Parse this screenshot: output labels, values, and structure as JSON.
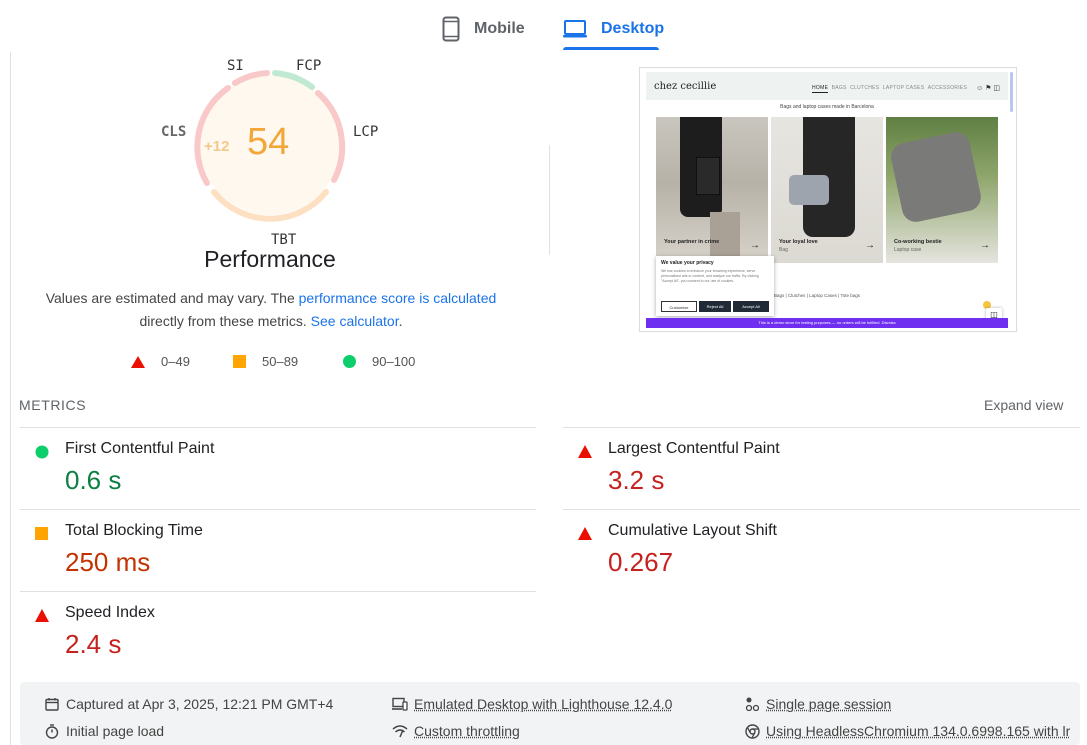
{
  "tabs": [
    {
      "label": "Mobile",
      "active": false
    },
    {
      "label": "Desktop",
      "active": true
    }
  ],
  "gauge": {
    "score": "54",
    "delta": "+12",
    "labels": {
      "si": "SI",
      "fcp": "FCP",
      "lcp": "LCP",
      "tbt": "TBT",
      "cls": "CLS"
    },
    "title": "Performance"
  },
  "description": {
    "text1": "Values are estimated and may vary. The ",
    "link1": "performance score is calculated",
    "text2": " directly from these metrics. ",
    "link2": "See calculator",
    "text3": "."
  },
  "legend": [
    {
      "shape": "triangle",
      "range": "0–49",
      "color": "#ff4e42"
    },
    {
      "shape": "square",
      "range": "50–89",
      "color": "#ffa400"
    },
    {
      "shape": "circle",
      "range": "90–100",
      "color": "#0cce6b"
    }
  ],
  "thumbnail": {
    "logo": "chez cecillie",
    "nav": [
      "HOME",
      "BAGS",
      "CLUTCHES",
      "LAPTOP CASES",
      "ACCESSORIES"
    ],
    "tagline": "Bags and laptop cases made in Barcelona",
    "panels": [
      {
        "title": "Your partner in crime",
        "sub": ""
      },
      {
        "title": "Your loyal love",
        "sub": "Bag"
      },
      {
        "title": "Co-working bestie",
        "sub": "Laptop case"
      }
    ],
    "privacy_title": "We value your privacy",
    "privacy_text": "We use cookies to enhance your browsing experience, serve personalised ads or content, and analyse our traffic. By clicking \"Accept All\", you consent to our use of cookies.",
    "privacy_buttons": [
      "Customise",
      "Reject All",
      "Accept All"
    ],
    "category_links": "Bags  |  Clutches  |  Laptop Cases  |  Tote bags",
    "demo_bar": "This is a demo store for testing purposes — no orders will be fulfilled. Dismiss"
  },
  "metrics": {
    "heading": "METRICS",
    "expand_label": "Expand view",
    "items": [
      {
        "name": "First Contentful Paint",
        "value": "0.6 s",
        "status": "good"
      },
      {
        "name": "Largest Contentful Paint",
        "value": "3.2 s",
        "status": "poor"
      },
      {
        "name": "Total Blocking Time",
        "value": "250 ms",
        "status": "average"
      },
      {
        "name": "Cumulative Layout Shift",
        "value": "0.267",
        "status": "poor"
      },
      {
        "name": "Speed Index",
        "value": "2.4 s",
        "status": "poor"
      }
    ]
  },
  "footer": {
    "captured": "Captured at Apr 3, 2025, 12:21 PM GMT+4",
    "emulated": "Emulated Desktop with Lighthouse 12.4.0",
    "session": "Single page session",
    "initial_load": "Initial page load",
    "throttling": "Custom throttling",
    "browser": "Using HeadlessChromium 134.0.6998.165 with lr"
  },
  "colors": {
    "accent": "#1a73e8",
    "good": "#0b8043",
    "average": "#c33300",
    "poor": "#c5221f",
    "score_orange": "#f2a73b"
  }
}
